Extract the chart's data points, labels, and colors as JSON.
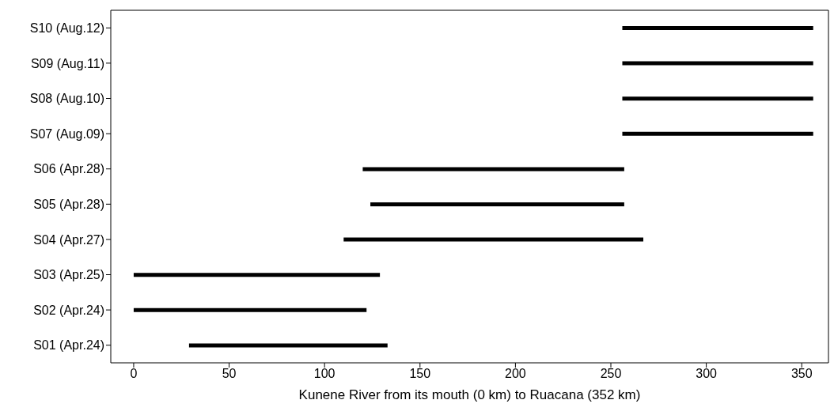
{
  "chart_data": {
    "type": "bar",
    "orientation": "horizontal",
    "xlabel": "Kunene River from its mouth (0 km) to Ruacana (352 km)",
    "categories": [
      "S10 (Aug.12)",
      "S09 (Aug.11)",
      "S08 (Aug.10)",
      "S07 (Aug.09)",
      "S06 (Apr.28)",
      "S05 (Apr.28)",
      "S04 (Apr.27)",
      "S03 (Apr.25)",
      "S02 (Apr.24)",
      "S01 (Apr.24)"
    ],
    "base": [
      256,
      256,
      256,
      256,
      120,
      124,
      110,
      0,
      0,
      29
    ],
    "values": [
      100,
      100,
      100,
      100,
      137,
      133,
      157,
      129,
      122,
      104
    ],
    "color": "#000000",
    "xlim": [
      -12,
      364
    ],
    "xticks": [
      0,
      50,
      100,
      150,
      200,
      250,
      300,
      350
    ]
  }
}
